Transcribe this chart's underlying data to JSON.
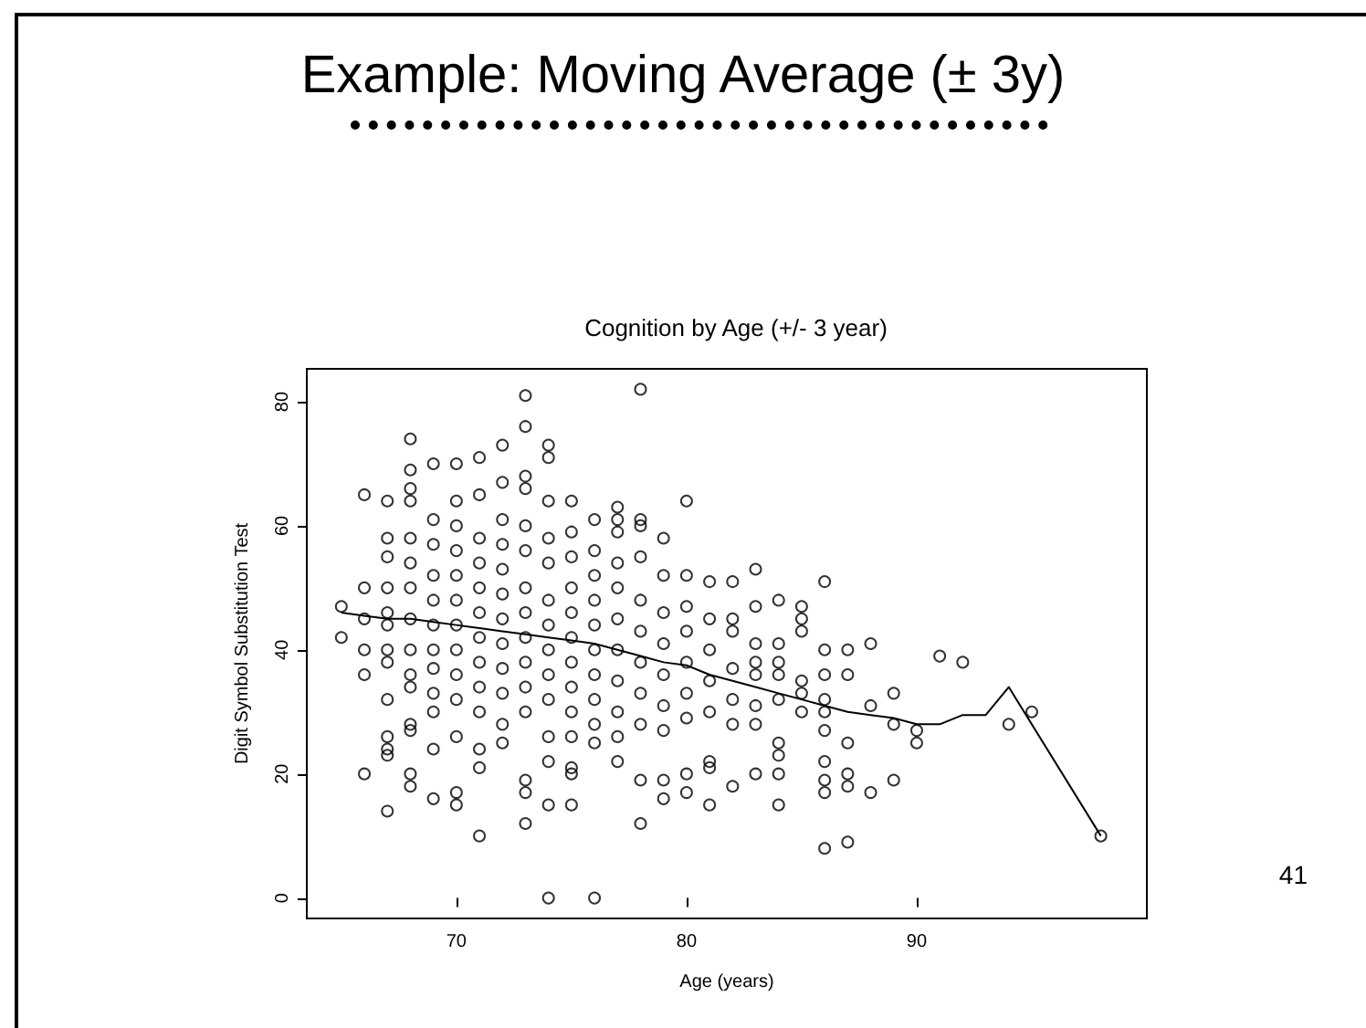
{
  "chart_data": {
    "type": "scatter",
    "title": "Example: Moving Average (± 3y)",
    "subtitle": "Cognition by Age (+/- 3 year)",
    "xlabel": "Age (years)",
    "ylabel": "Digit Symbol Substitution Test",
    "annotations": [
      "41"
    ],
    "xlim": [
      63.5,
      100
    ],
    "xticks": [
      70,
      80,
      90
    ],
    "ylim": [
      -3.3,
      85.3
    ],
    "yticks": [
      0,
      20,
      40,
      60,
      80
    ],
    "grid": false,
    "marker": "circle",
    "series": [
      {
        "color": "#000000",
        "x": [
          65,
          65,
          66,
          66,
          66,
          66,
          66,
          66,
          67,
          67,
          67,
          67,
          67,
          67,
          67,
          67,
          67,
          67,
          67,
          67,
          67,
          68,
          68,
          68,
          68,
          68,
          68,
          68,
          68,
          68,
          68,
          68,
          68,
          68,
          68,
          68,
          69,
          69,
          69,
          69,
          69,
          69,
          69,
          69,
          69,
          69,
          69,
          69,
          70,
          70,
          70,
          70,
          70,
          70,
          70,
          70,
          70,
          70,
          70,
          70,
          70,
          71,
          71,
          71,
          71,
          71,
          71,
          71,
          71,
          71,
          71,
          71,
          71,
          71,
          72,
          72,
          72,
          72,
          72,
          72,
          72,
          72,
          72,
          72,
          72,
          72,
          73,
          73,
          73,
          73,
          73,
          73,
          73,
          73,
          73,
          73,
          73,
          73,
          73,
          73,
          73,
          74,
          74,
          74,
          74,
          74,
          74,
          74,
          74,
          74,
          74,
          74,
          74,
          74,
          74,
          75,
          75,
          75,
          75,
          75,
          75,
          75,
          75,
          75,
          75,
          75,
          75,
          75,
          76,
          76,
          76,
          76,
          76,
          76,
          76,
          76,
          76,
          76,
          76,
          77,
          77,
          77,
          77,
          77,
          77,
          77,
          77,
          77,
          77,
          77,
          78,
          78,
          78,
          78,
          78,
          78,
          78,
          78,
          78,
          78,
          78,
          79,
          79,
          79,
          79,
          79,
          79,
          79,
          79,
          79,
          80,
          80,
          80,
          80,
          80,
          80,
          80,
          80,
          80,
          81,
          81,
          81,
          81,
          81,
          81,
          81,
          81,
          82,
          82,
          82,
          82,
          82,
          82,
          82,
          83,
          83,
          83,
          83,
          83,
          83,
          83,
          83,
          84,
          84,
          84,
          84,
          84,
          84,
          84,
          84,
          84,
          85,
          85,
          85,
          85,
          85,
          85,
          86,
          86,
          86,
          86,
          86,
          86,
          86,
          86,
          86,
          86,
          87,
          87,
          87,
          87,
          87,
          87,
          88,
          88,
          88,
          89,
          89,
          89,
          90,
          90,
          91,
          92,
          94,
          95,
          98
        ],
        "values": [
          47,
          42,
          40,
          36,
          20,
          45,
          50,
          65,
          64,
          58,
          55,
          50,
          46,
          44,
          40,
          38,
          32,
          26,
          24,
          23,
          14,
          74,
          69,
          66,
          64,
          58,
          54,
          50,
          45,
          40,
          36,
          34,
          28,
          20,
          18,
          27,
          70,
          61,
          57,
          52,
          48,
          44,
          40,
          37,
          33,
          30,
          24,
          16,
          70,
          64,
          60,
          56,
          52,
          48,
          44,
          40,
          36,
          32,
          26,
          17,
          15,
          71,
          65,
          58,
          54,
          50,
          46,
          42,
          38,
          34,
          30,
          24,
          21,
          10,
          73,
          67,
          61,
          57,
          53,
          49,
          45,
          41,
          37,
          33,
          28,
          25,
          81,
          76,
          68,
          66,
          60,
          56,
          50,
          46,
          42,
          38,
          34,
          30,
          19,
          17,
          12,
          73,
          71,
          64,
          58,
          54,
          48,
          44,
          40,
          36,
          32,
          26,
          22,
          15,
          0,
          64,
          59,
          55,
          50,
          46,
          42,
          38,
          34,
          30,
          26,
          21,
          20,
          15,
          61,
          56,
          52,
          48,
          44,
          40,
          36,
          32,
          28,
          25,
          0,
          63,
          61,
          59,
          54,
          50,
          45,
          40,
          35,
          30,
          26,
          22,
          82,
          61,
          60,
          55,
          48,
          43,
          38,
          33,
          28,
          19,
          12,
          58,
          52,
          46,
          41,
          36,
          31,
          27,
          19,
          16,
          64,
          52,
          47,
          43,
          38,
          33,
          29,
          20,
          17,
          51,
          45,
          40,
          35,
          30,
          22,
          21,
          15,
          51,
          45,
          43,
          37,
          32,
          28,
          18,
          53,
          47,
          41,
          38,
          36,
          31,
          28,
          20,
          48,
          41,
          38,
          36,
          32,
          25,
          23,
          20,
          15,
          47,
          45,
          43,
          35,
          33,
          30,
          51,
          40,
          36,
          32,
          30,
          27,
          22,
          19,
          17,
          8,
          40,
          36,
          25,
          20,
          18,
          9,
          41,
          31,
          17,
          33,
          28,
          19,
          27,
          25,
          39,
          38,
          28,
          30,
          10
        ]
      },
      {
        "type": "line",
        "marker": "none",
        "color": "#000000",
        "x": [
          65,
          66,
          67,
          68,
          69,
          70,
          71,
          72,
          73,
          74,
          75,
          76,
          77,
          78,
          79,
          80,
          81,
          82,
          83,
          84,
          85,
          86,
          87,
          88,
          89,
          90,
          91,
          92,
          93,
          94,
          98
        ],
        "values": [
          46,
          45.5,
          45,
          45,
          44.5,
          44,
          43.5,
          43,
          42.5,
          42,
          41.5,
          41,
          40,
          39,
          38,
          37.5,
          36,
          35,
          34,
          33,
          32,
          31,
          30,
          29.5,
          29,
          28,
          28,
          29.5,
          29.5,
          34,
          10
        ]
      }
    ]
  }
}
